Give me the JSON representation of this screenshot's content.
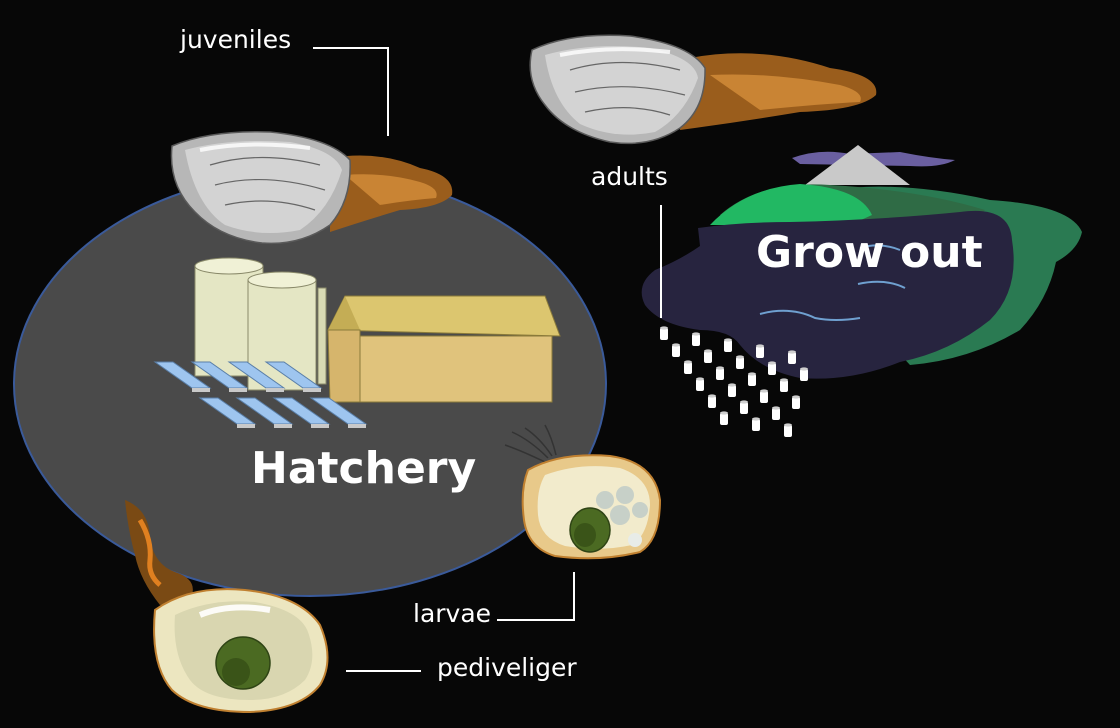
{
  "labels": {
    "juveniles": "juveniles",
    "adults": "adults",
    "grow_out": "Grow out",
    "hatchery": "Hatchery",
    "larvae": "larvae",
    "pediveliger": "pediveliger"
  }
}
